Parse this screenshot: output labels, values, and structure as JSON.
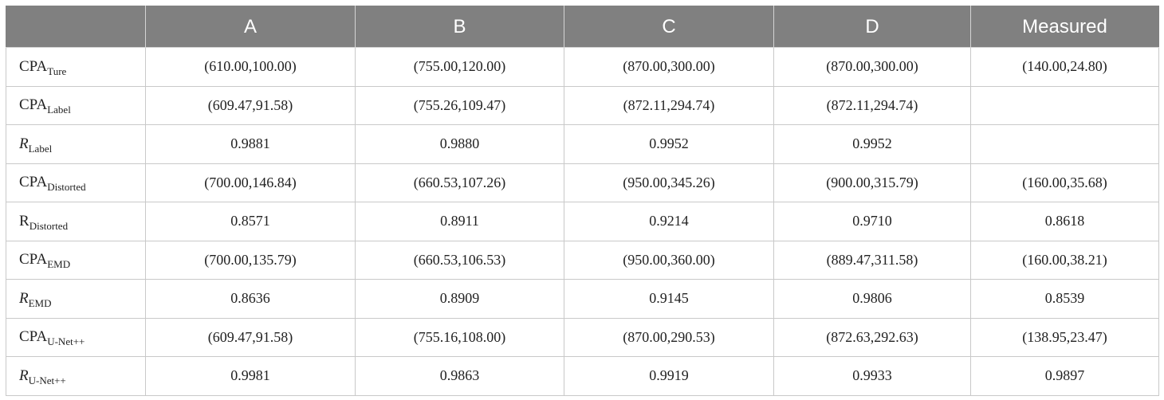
{
  "headers": [
    "",
    "A",
    "B",
    "C",
    "D",
    "Measured"
  ],
  "rows": [
    {
      "label": {
        "base": "CPA",
        "sub": "Ture",
        "italic": false
      },
      "cells": [
        "(610.00,100.00)",
        "(755.00,120.00)",
        "(870.00,300.00)",
        "(870.00,300.00)",
        "(140.00,24.80)"
      ]
    },
    {
      "label": {
        "base": "CPA",
        "sub": "Label",
        "italic": false
      },
      "cells": [
        "(609.47,91.58)",
        "(755.26,109.47)",
        "(872.11,294.74)",
        "(872.11,294.74)",
        ""
      ]
    },
    {
      "label": {
        "base": "R",
        "sub": "Label",
        "italic": true
      },
      "cells": [
        "0.9881",
        "0.9880",
        "0.9952",
        "0.9952",
        ""
      ]
    },
    {
      "label": {
        "base": "CPA",
        "sub": "Distorted",
        "italic": false
      },
      "cells": [
        "(700.00,146.84)",
        "(660.53,107.26)",
        "(950.00,345.26)",
        "(900.00,315.79)",
        "(160.00,35.68)"
      ]
    },
    {
      "label": {
        "base": "R",
        "sub": "Distorted",
        "italic": false
      },
      "cells": [
        "0.8571",
        "0.8911",
        "0.9214",
        "0.9710",
        "0.8618"
      ]
    },
    {
      "label": {
        "base": "CPA",
        "sub": "EMD",
        "italic": false
      },
      "cells": [
        "(700.00,135.79)",
        "(660.53,106.53)",
        "(950.00,360.00)",
        "(889.47,311.58)",
        "(160.00,38.21)"
      ]
    },
    {
      "label": {
        "base": "R",
        "sub": "EMD",
        "italic": true
      },
      "cells": [
        "0.8636",
        "0.8909",
        "0.9145",
        "0.9806",
        "0.8539"
      ]
    },
    {
      "label": {
        "base": "CPA",
        "sub": "U-Net++",
        "italic": false
      },
      "cells": [
        "(609.47,91.58)",
        "(755.16,108.00)",
        "(870.00,290.53)",
        "(872.63,292.63)",
        "(138.95,23.47)"
      ]
    },
    {
      "label": {
        "base": "R",
        "sub": "U-Net++",
        "italic": true
      },
      "cells": [
        "0.9981",
        "0.9863",
        "0.9919",
        "0.9933",
        "0.9897"
      ]
    }
  ]
}
